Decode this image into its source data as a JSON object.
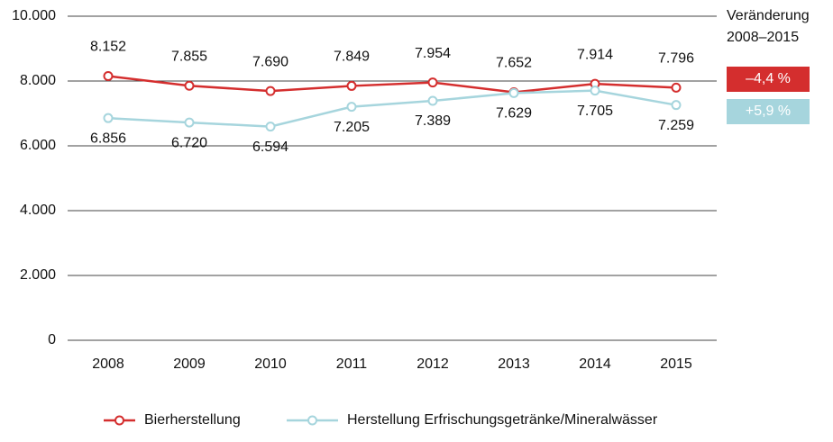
{
  "chart_data": {
    "type": "line",
    "categories": [
      "2008",
      "2009",
      "2010",
      "2011",
      "2012",
      "2013",
      "2014",
      "2015"
    ],
    "series": [
      {
        "name": "Bierherstellung",
        "color": "#d42e2e",
        "values": [
          8152,
          7855,
          7690,
          7849,
          7954,
          7652,
          7914,
          7796
        ],
        "value_labels": [
          "8.152",
          "7.855",
          "7.690",
          "7.849",
          "7.954",
          "7.652",
          "7.914",
          "7.796"
        ],
        "change": "–4,4 %"
      },
      {
        "name": "Herstellung Erfrischungsgetränke/Mineralwässer",
        "color": "#a6d5dd",
        "values": [
          6856,
          6720,
          6594,
          7205,
          7389,
          7629,
          7705,
          7259
        ],
        "value_labels": [
          "6.856",
          "6.720",
          "6.594",
          "7.205",
          "7.389",
          "7.629",
          "7.705",
          "7.259"
        ],
        "change": "+5,9 %"
      }
    ],
    "change_title": [
      "Veränderung",
      "2008–2015"
    ],
    "ylim": [
      0,
      10000
    ],
    "yticks": [
      0,
      {
        "value": 2000,
        "label": "2.000"
      },
      {
        "value": 4000,
        "label": "4.000"
      },
      {
        "value": 6000,
        "label": "6.000"
      },
      {
        "value": 8000,
        "label": "8.000"
      },
      {
        "value": 10000,
        "label": "10.000"
      }
    ],
    "grid": true,
    "legend": "bottom"
  }
}
